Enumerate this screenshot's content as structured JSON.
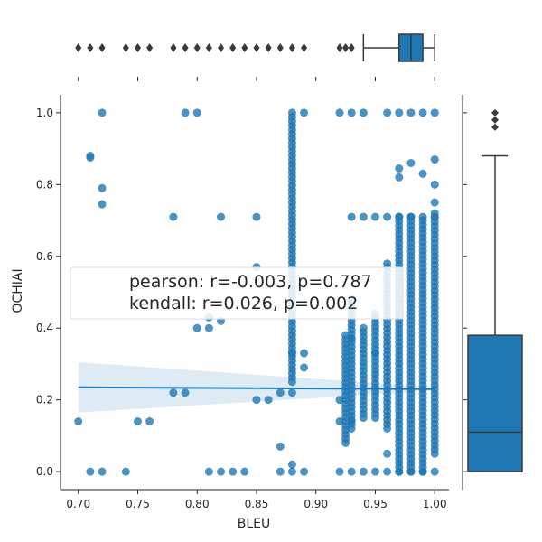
{
  "chart_data": {
    "type": "scatter",
    "xlabel": "BLEU",
    "ylabel": "OCHIAI",
    "xlim": [
      0.685,
      1.012
    ],
    "ylim": [
      -0.05,
      1.05
    ],
    "xticks": [
      0.7,
      0.75,
      0.8,
      0.85,
      0.9,
      0.95,
      1.0
    ],
    "xtick_labels": [
      "0.70",
      "0.75",
      "0.80",
      "0.85",
      "0.90",
      "0.95",
      "1.00"
    ],
    "yticks": [
      0.0,
      0.2,
      0.4,
      0.6,
      0.8,
      1.0
    ],
    "ytick_labels": [
      "0.0",
      "0.2",
      "0.4",
      "0.6",
      "0.8",
      "1.0"
    ],
    "grid": false,
    "color": "#1f77b4",
    "annotation": {
      "lines": [
        "pearson: r=-0.003, p=0.787",
        "kendall: r=0.026, p=0.002"
      ],
      "position": "center-left"
    },
    "points": [
      [
        0.7,
        0.14
      ],
      [
        0.71,
        0.0
      ],
      [
        0.71,
        0.875
      ],
      [
        0.71,
        0.88
      ],
      [
        0.72,
        0.0
      ],
      [
        0.72,
        1.0
      ],
      [
        0.72,
        0.79
      ],
      [
        0.72,
        0.745
      ],
      [
        0.74,
        0.0
      ],
      [
        0.75,
        0.14
      ],
      [
        0.76,
        0.14
      ],
      [
        0.78,
        0.71
      ],
      [
        0.78,
        0.22
      ],
      [
        0.79,
        1.0
      ],
      [
        0.79,
        0.22
      ],
      [
        0.8,
        1.0
      ],
      [
        0.8,
        0.4
      ],
      [
        0.81,
        0.4
      ],
      [
        0.81,
        0.0
      ],
      [
        0.81,
        0.43
      ],
      [
        0.82,
        0.0
      ],
      [
        0.82,
        0.71
      ],
      [
        0.82,
        0.42
      ],
      [
        0.83,
        0.0
      ],
      [
        0.84,
        0.0
      ],
      [
        0.85,
        0.71
      ],
      [
        0.85,
        0.2
      ],
      [
        0.85,
        0.57
      ],
      [
        0.86,
        0.2
      ],
      [
        0.87,
        0.0
      ],
      [
        0.87,
        0.07
      ],
      [
        0.87,
        0.22
      ],
      [
        0.88,
        0.0
      ],
      [
        0.88,
        0.02
      ],
      [
        0.88,
        0.22
      ],
      [
        0.88,
        0.33
      ],
      [
        0.89,
        1.0
      ],
      [
        0.89,
        0.0
      ],
      [
        0.89,
        0.33
      ],
      [
        0.89,
        0.29
      ],
      [
        0.92,
        1.0
      ],
      [
        0.92,
        0.0
      ],
      [
        0.92,
        0.14
      ],
      [
        0.92,
        0.2
      ],
      [
        0.93,
        1.0
      ],
      [
        0.93,
        0.0
      ],
      [
        0.93,
        0.71
      ],
      [
        0.93,
        0.37
      ],
      [
        0.93,
        0.14
      ],
      [
        0.94,
        1.0
      ],
      [
        0.94,
        0.71
      ],
      [
        0.94,
        0.0
      ],
      [
        0.95,
        0.71
      ],
      [
        0.95,
        0.0
      ],
      [
        0.95,
        0.33
      ],
      [
        0.96,
        1.0
      ],
      [
        0.96,
        0.71
      ],
      [
        0.96,
        0.0
      ],
      [
        0.96,
        0.05
      ],
      [
        0.97,
        1.0
      ],
      [
        0.97,
        0.845
      ],
      [
        0.97,
        0.82
      ],
      [
        0.97,
        0.71
      ],
      [
        0.97,
        0.0
      ],
      [
        0.98,
        0.86
      ],
      [
        0.98,
        0.71
      ],
      [
        0.98,
        1.0
      ],
      [
        0.98,
        0.0
      ],
      [
        0.99,
        1.0
      ],
      [
        0.99,
        0.83
      ],
      [
        0.99,
        0.71
      ],
      [
        0.99,
        0.0
      ],
      [
        1.0,
        1.0
      ],
      [
        1.0,
        0.87
      ],
      [
        1.0,
        0.8
      ],
      [
        1.0,
        0.75
      ],
      [
        1.0,
        0.71
      ],
      [
        1.0,
        0.0
      ]
    ],
    "dense_columns": [
      {
        "x": 0.88,
        "y_min": 0.25,
        "y_max": 1.0
      },
      {
        "x": 0.925,
        "y_min": 0.08,
        "y_max": 0.38
      },
      {
        "x": 0.93,
        "y_min": 0.12,
        "y_max": 0.48
      },
      {
        "x": 0.94,
        "y_min": 0.15,
        "y_max": 0.4
      },
      {
        "x": 0.95,
        "y_min": 0.15,
        "y_max": 0.44
      },
      {
        "x": 0.96,
        "y_min": 0.12,
        "y_max": 0.58
      },
      {
        "x": 0.97,
        "y_min": 0.0,
        "y_max": 0.71
      },
      {
        "x": 0.98,
        "y_min": 0.0,
        "y_max": 0.71
      },
      {
        "x": 0.99,
        "y_min": 0.0,
        "y_max": 0.7
      },
      {
        "x": 1.0,
        "y_min": 0.05,
        "y_max": 0.72
      }
    ],
    "regression": {
      "x_start": 0.7,
      "x_end": 1.0,
      "y_start": 0.235,
      "y_end": 0.23,
      "ci_low_start": 0.165,
      "ci_high_start": 0.305,
      "ci_low_end": 0.225,
      "ci_high_end": 0.235
    },
    "marginal_x_box": {
      "q1": 0.97,
      "median": 0.98,
      "q3": 0.99,
      "whisker_low": 0.94,
      "whisker_high": 1.0,
      "outliers": [
        0.7,
        0.71,
        0.72,
        0.74,
        0.75,
        0.76,
        0.78,
        0.79,
        0.8,
        0.81,
        0.82,
        0.83,
        0.84,
        0.85,
        0.86,
        0.87,
        0.88,
        0.89,
        0.92,
        0.925,
        0.93
      ]
    },
    "marginal_y_box": {
      "q1": 0.0,
      "median": 0.11,
      "q3": 0.38,
      "whisker_low": 0.0,
      "whisker_high": 0.88,
      "outliers": [
        0.96,
        0.98,
        1.0
      ]
    }
  }
}
